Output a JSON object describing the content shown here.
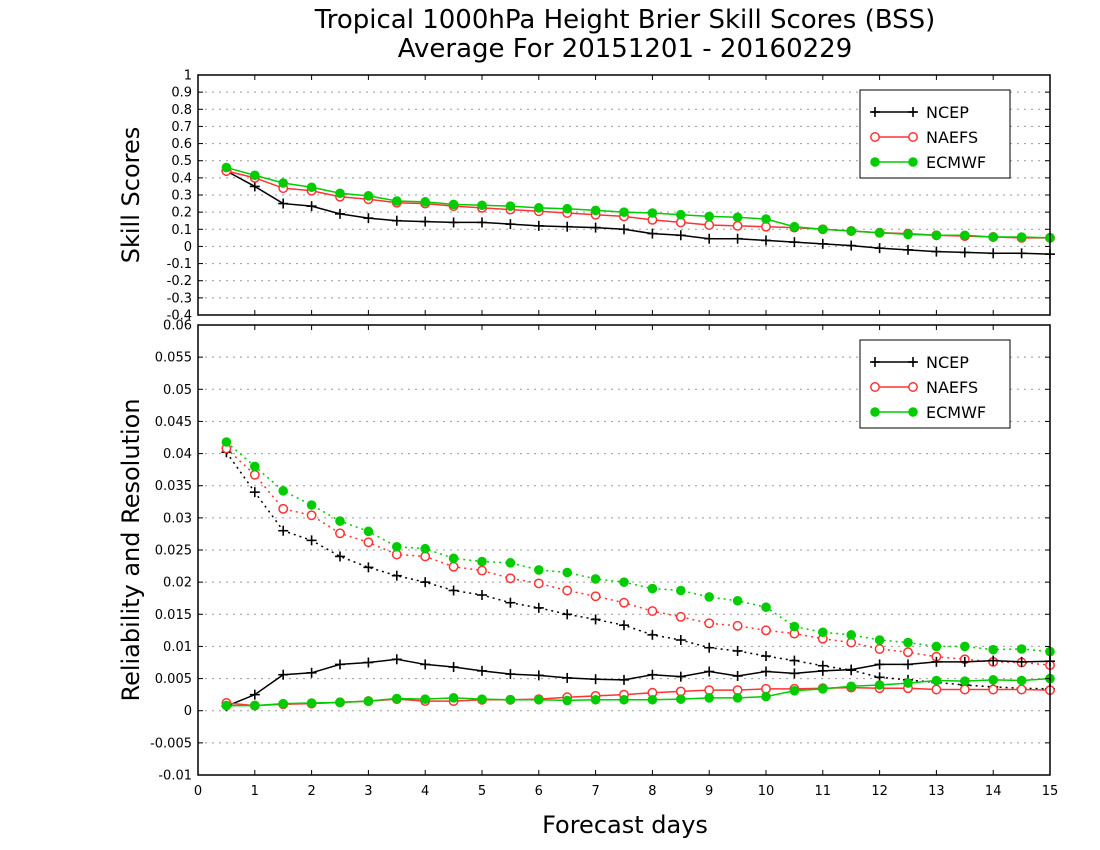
{
  "chart_data": {
    "type": "line",
    "title": "Tropical 1000hPa Height Brier Skill Scores (BSS)",
    "subtitle": "Average For 20151201 - 20160229",
    "xlabel": "Forecast days",
    "xlim": [
      0,
      15
    ],
    "x_ticks": [
      "0",
      "1",
      "2",
      "3",
      "4",
      "5",
      "6",
      "7",
      "8",
      "9",
      "10",
      "11",
      "12",
      "13",
      "14",
      "15"
    ],
    "x": [
      0.5,
      1,
      1.5,
      2,
      2.5,
      3,
      3.5,
      4,
      4.5,
      5,
      5.5,
      6,
      6.5,
      7,
      7.5,
      8,
      8.5,
      9,
      9.5,
      10,
      10.5,
      11,
      11.5,
      12,
      12.5,
      13,
      13.5,
      14,
      14.5,
      15
    ],
    "legend": {
      "position": "top-right",
      "entries": [
        "NCEP",
        "NAEFS",
        "ECMWF"
      ]
    },
    "colors": {
      "NCEP": "#000000",
      "NAEFS": "#ff3333",
      "ECMWF": "#00cc00"
    },
    "panels": [
      {
        "ylabel": "Skill Scores",
        "ylim": [
          -0.4,
          1
        ],
        "y_ticks": [
          "-0.4",
          "-0.3",
          "-0.2",
          "-0.1",
          "0",
          "0.1",
          "0.2",
          "0.3",
          "0.4",
          "0.5",
          "0.6",
          "0.7",
          "0.8",
          "0.9",
          "1"
        ],
        "grid": true,
        "series": [
          {
            "name": "NCEP",
            "line": "solid",
            "marker": "plus",
            "values": [
              0.44,
              0.35,
              0.25,
              0.235,
              0.19,
              0.165,
              0.15,
              0.145,
              0.14,
              0.14,
              0.13,
              0.12,
              0.115,
              0.11,
              0.1,
              0.075,
              0.065,
              0.045,
              0.045,
              0.035,
              0.025,
              0.015,
              0.005,
              -0.01,
              -0.02,
              -0.03,
              -0.035,
              -0.04,
              -0.04,
              -0.045
            ]
          },
          {
            "name": "NAEFS",
            "line": "solid",
            "marker": "open-circle",
            "values": [
              0.44,
              0.4,
              0.34,
              0.325,
              0.29,
              0.275,
              0.255,
              0.25,
              0.235,
              0.225,
              0.215,
              0.205,
              0.195,
              0.185,
              0.175,
              0.155,
              0.14,
              0.125,
              0.12,
              0.115,
              0.11,
              0.1,
              0.09,
              0.08,
              0.075,
              0.065,
              0.06,
              0.055,
              0.05,
              0.05
            ]
          },
          {
            "name": "ECMWF",
            "line": "solid",
            "marker": "filled-circle",
            "values": [
              0.46,
              0.415,
              0.37,
              0.345,
              0.31,
              0.295,
              0.265,
              0.26,
              0.245,
              0.24,
              0.235,
              0.225,
              0.22,
              0.21,
              0.2,
              0.195,
              0.185,
              0.175,
              0.17,
              0.16,
              0.115,
              0.1,
              0.09,
              0.08,
              0.07,
              0.065,
              0.065,
              0.055,
              0.055,
              0.05
            ]
          }
        ]
      },
      {
        "ylabel": "Reliability and Resolution",
        "ylim": [
          -0.01,
          0.06
        ],
        "y_ticks": [
          "-0.01",
          "-0.005",
          "0",
          "0.005",
          "0.01",
          "0.015",
          "0.02",
          "0.025",
          "0.03",
          "0.035",
          "0.04",
          "0.045",
          "0.05",
          "0.055",
          "0.06"
        ],
        "grid": true,
        "series": [
          {
            "name": "NCEP",
            "metric": "resolution",
            "line": "dotted",
            "marker": "plus",
            "values": [
              0.0402,
              0.034,
              0.028,
              0.0265,
              0.024,
              0.0223,
              0.021,
              0.02,
              0.0187,
              0.018,
              0.0168,
              0.016,
              0.015,
              0.0142,
              0.0133,
              0.0118,
              0.011,
              0.0098,
              0.0093,
              0.0085,
              0.0078,
              0.007,
              0.0063,
              0.0052,
              0.0048,
              0.0044,
              0.004,
              0.0037,
              0.0035,
              0.0034
            ]
          },
          {
            "name": "NAEFS",
            "metric": "resolution",
            "line": "dotted",
            "marker": "open-circle",
            "values": [
              0.0408,
              0.0367,
              0.0314,
              0.0304,
              0.0276,
              0.0262,
              0.0243,
              0.024,
              0.0224,
              0.0218,
              0.0206,
              0.0198,
              0.0187,
              0.0178,
              0.0168,
              0.0155,
              0.0146,
              0.0136,
              0.0132,
              0.0125,
              0.012,
              0.0112,
              0.0106,
              0.0096,
              0.0091,
              0.0084,
              0.008,
              0.0076,
              0.0075,
              0.0071
            ]
          },
          {
            "name": "ECMWF",
            "metric": "resolution",
            "line": "dotted",
            "marker": "filled-circle",
            "values": [
              0.0418,
              0.038,
              0.0342,
              0.032,
              0.0295,
              0.0279,
              0.0255,
              0.0252,
              0.0237,
              0.0232,
              0.023,
              0.0219,
              0.0215,
              0.0205,
              0.02,
              0.019,
              0.0187,
              0.0177,
              0.0171,
              0.0161,
              0.0131,
              0.0122,
              0.0118,
              0.011,
              0.0106,
              0.01,
              0.01,
              0.0095,
              0.0096,
              0.0092
            ]
          },
          {
            "name": "NCEP",
            "metric": "reliability",
            "line": "solid",
            "marker": "plus",
            "values": [
              0.0007,
              0.0025,
              0.0056,
              0.0059,
              0.0072,
              0.0075,
              0.008,
              0.0072,
              0.0068,
              0.0062,
              0.0057,
              0.0055,
              0.0051,
              0.0049,
              0.0048,
              0.0056,
              0.0053,
              0.0061,
              0.0054,
              0.0061,
              0.0058,
              0.0062,
              0.0064,
              0.0072,
              0.0072,
              0.0076,
              0.0076,
              0.0078,
              0.0076,
              0.0077
            ]
          },
          {
            "name": "NAEFS",
            "metric": "reliability",
            "line": "solid",
            "marker": "open-circle",
            "values": [
              0.0012,
              0.0008,
              0.001,
              0.0011,
              0.0013,
              0.0015,
              0.0018,
              0.0015,
              0.0015,
              0.0017,
              0.0017,
              0.0018,
              0.0021,
              0.0023,
              0.0025,
              0.0028,
              0.003,
              0.0032,
              0.0032,
              0.0034,
              0.0034,
              0.0035,
              0.0036,
              0.0035,
              0.0035,
              0.0033,
              0.0033,
              0.0033,
              0.0033,
              0.0032
            ]
          },
          {
            "name": "ECMWF",
            "metric": "reliability",
            "line": "solid",
            "marker": "filled-circle",
            "values": [
              0.0008,
              0.0008,
              0.0011,
              0.0012,
              0.0013,
              0.0015,
              0.0019,
              0.0018,
              0.002,
              0.0018,
              0.0017,
              0.0017,
              0.0016,
              0.0017,
              0.0017,
              0.0017,
              0.0018,
              0.002,
              0.002,
              0.0022,
              0.0031,
              0.0034,
              0.0038,
              0.004,
              0.0043,
              0.0047,
              0.0046,
              0.0048,
              0.0047,
              0.005
            ]
          }
        ]
      }
    ]
  }
}
